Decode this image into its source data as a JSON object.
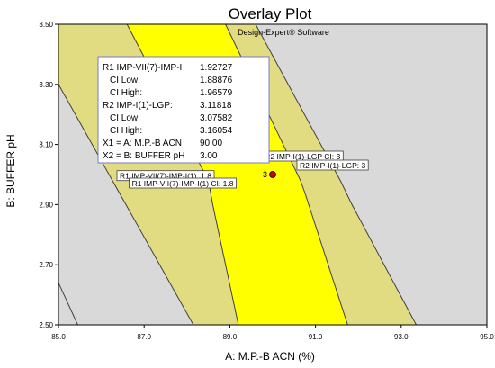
{
  "chart_data": {
    "type": "overlay-contour",
    "title": "Overlay Plot",
    "software": "Design-Expert® Software",
    "xlabel": "A:  M.P.-B ACN (%)",
    "ylabel": "B: BUFFER pH",
    "xlim": [
      85.0,
      95.0
    ],
    "ylim": [
      2.5,
      3.5
    ],
    "xticks": [
      "85.0",
      "87.0",
      "89.0",
      "91.0",
      "93.0",
      "95.0"
    ],
    "yticks": [
      "2.50",
      "2.70",
      "2.90",
      "3.10",
      "3.30",
      "3.50"
    ],
    "colors": {
      "background": "#d9d9d9",
      "ci_band": "#e1dc82",
      "sweet_spot": "#ffff00",
      "boundary": "#404040",
      "point": "#cc0000"
    },
    "regions": {
      "ci_band": [
        [
          85.0,
          3.5
        ],
        [
          86.6,
          3.5
        ],
        [
          88.5,
          2.98
        ],
        [
          88.6,
          2.9
        ],
        [
          89.2,
          2.5
        ],
        [
          88.15,
          2.5
        ],
        [
          85.0,
          3.3
        ]
      ],
      "sweet_spot": [
        [
          86.6,
          3.5
        ],
        [
          88.9,
          3.5
        ],
        [
          90.65,
          2.98
        ],
        [
          90.75,
          2.94
        ],
        [
          91.75,
          2.5
        ],
        [
          89.2,
          2.5
        ],
        [
          88.6,
          2.9
        ],
        [
          88.5,
          2.98
        ]
      ],
      "right_band": [
        [
          88.9,
          3.5
        ],
        [
          89.6,
          3.5
        ],
        [
          91.58,
          2.98
        ],
        [
          91.85,
          2.9
        ],
        [
          93.35,
          2.5
        ],
        [
          91.75,
          2.5
        ],
        [
          90.75,
          2.94
        ],
        [
          90.65,
          2.98
        ]
      ]
    },
    "boundaries": [
      [
        [
          85.0,
          3.3
        ],
        [
          88.15,
          2.5
        ]
      ],
      [
        [
          86.6,
          3.5
        ],
        [
          88.5,
          2.98
        ],
        [
          88.6,
          2.9
        ],
        [
          89.2,
          2.5
        ]
      ],
      [
        [
          88.9,
          3.5
        ],
        [
          90.65,
          2.98
        ],
        [
          90.75,
          2.94
        ],
        [
          91.75,
          2.5
        ]
      ],
      [
        [
          89.6,
          3.5
        ],
        [
          91.58,
          2.98
        ],
        [
          91.85,
          2.9
        ],
        [
          93.35,
          2.5
        ]
      ],
      [
        [
          85.0,
          2.64
        ],
        [
          85.45,
          2.5
        ]
      ]
    ],
    "flags": [
      {
        "text": "R1 IMP-VII(7)-IMP-I(1): 1.8",
        "x": 87.5,
        "y": 2.995
      },
      {
        "text": "R1 IMP-VII(7)-IMP-I(1) CI:  1.8",
        "x": 87.9,
        "y": 2.97
      },
      {
        "text": "R2 IMP-I(1)-LGP CI:  3",
        "x": 90.7,
        "y": 3.06
      },
      {
        "text": "R2 IMP-I(1)-LGP: 3",
        "x": 91.4,
        "y": 3.03
      }
    ],
    "point": {
      "x": 90.0,
      "y": 3.0,
      "label": "3"
    },
    "info_box": {
      "rows": [
        {
          "label": "R1 IMP-VII(7)-IMP-I",
          "value": "1.92727"
        },
        {
          "label": "  CI Low:",
          "value": "1.88876"
        },
        {
          "label": "  CI High:",
          "value": "1.96579"
        },
        {
          "label": "R2 IMP-I(1)-LGP:",
          "value": "3.11818"
        },
        {
          "label": "  CI Low:",
          "value": "3.07582"
        },
        {
          "label": "  CI High:",
          "value": "3.16054"
        },
        {
          "label": "X1 = A:  M.P.-B ACN",
          "value": "90.00"
        },
        {
          "label": "X2 = B: BUFFER pH",
          "value": "3.00"
        }
      ]
    }
  }
}
